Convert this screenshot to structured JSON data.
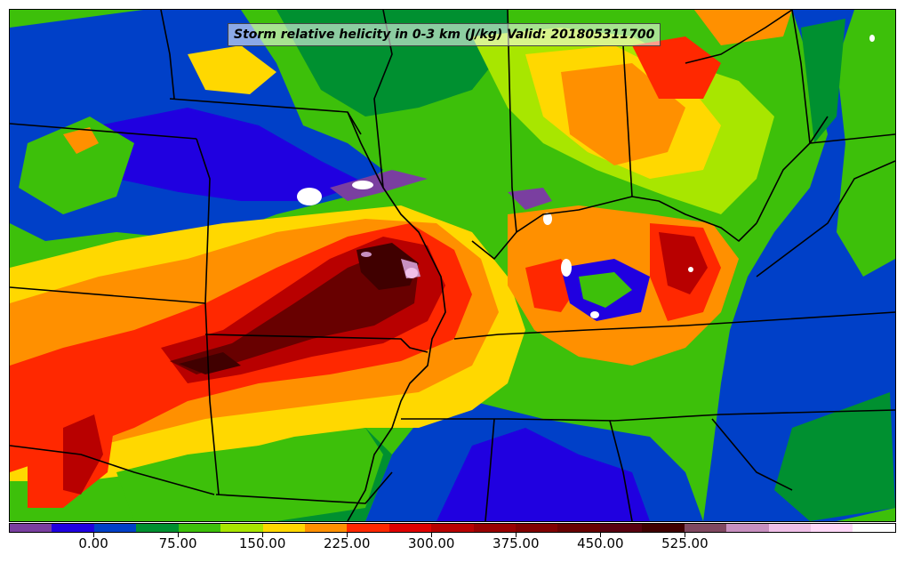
{
  "title": "Storm relative helicity in 0-3 km (J/kg) Valid: 201805311700",
  "legend": {
    "colors": [
      "#7a3fa0",
      "#2000e0",
      "#0040c8",
      "#009030",
      "#3dc00a",
      "#a8e600",
      "#ffd800",
      "#ff9000",
      "#ff2800",
      "#e00000",
      "#b80000",
      "#980000",
      "#800000",
      "#680000",
      "#580010",
      "#400000",
      "#804860",
      "#c890c0",
      "#f0c0e8",
      "#ffd8f8",
      "#ffffff"
    ],
    "ticks": [
      "0.00",
      "75.00",
      "150.00",
      "225.00",
      "300.00",
      "375.00",
      "450.00",
      "525.00"
    ]
  },
  "palette": {
    "deep_purple": "#7a3fa0",
    "blue": "#2000e0",
    "mid_blue": "#0040c8",
    "dark_green": "#009030",
    "green": "#3dc00a",
    "yellow_green": "#a8e600",
    "yellow": "#ffd800",
    "orange": "#ff9000",
    "red": "#ff2800",
    "dark_red": "#b80000",
    "maroon": "#680000",
    "near_black": "#400000",
    "pink": "#c890c0",
    "white": "#ffffff"
  }
}
